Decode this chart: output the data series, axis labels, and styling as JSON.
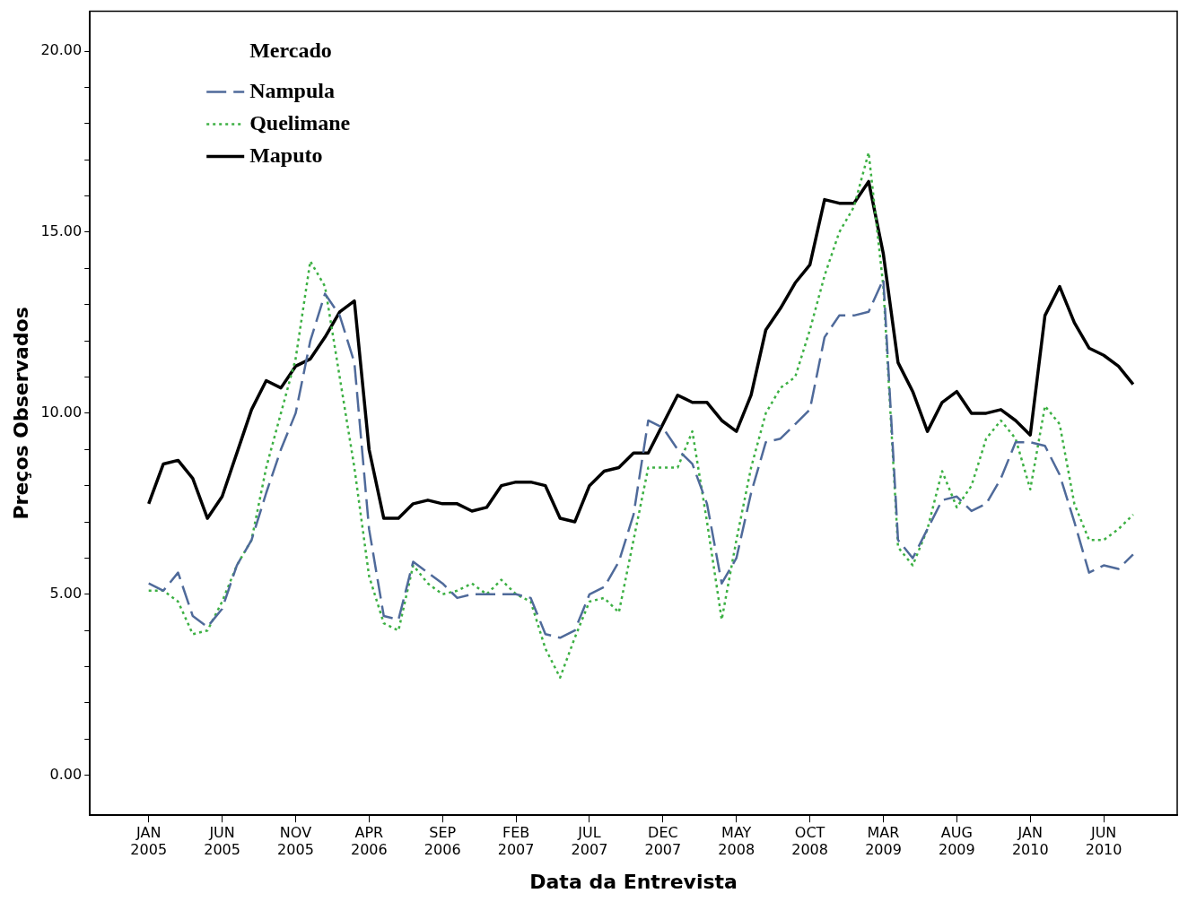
{
  "chart_data": {
    "type": "line",
    "xlabel": "Data da Entrevista",
    "ylabel": "Preços Observados",
    "legend_title": "Mercado",
    "legend": "top left",
    "grid": false,
    "marker": "none",
    "x": [
      "2005-01",
      "2005-02",
      "2005-03",
      "2005-04",
      "2005-05",
      "2005-06",
      "2005-07",
      "2005-08",
      "2005-09",
      "2005-10",
      "2005-11",
      "2005-12",
      "2006-01",
      "2006-02",
      "2006-03",
      "2006-04",
      "2006-05",
      "2006-06",
      "2006-07",
      "2006-08",
      "2006-09",
      "2006-10",
      "2006-11",
      "2006-12",
      "2007-01",
      "2007-02",
      "2007-03",
      "2007-04",
      "2007-05",
      "2007-06",
      "2007-07",
      "2007-08",
      "2007-09",
      "2007-10",
      "2007-11",
      "2007-12",
      "2008-01",
      "2008-02",
      "2008-03",
      "2008-04",
      "2008-05",
      "2008-06",
      "2008-07",
      "2008-08",
      "2008-09",
      "2008-10",
      "2008-11",
      "2008-12",
      "2009-01",
      "2009-02",
      "2009-03",
      "2009-04",
      "2009-05",
      "2009-06",
      "2009-07",
      "2009-08",
      "2009-09",
      "2009-10",
      "2009-11",
      "2009-12",
      "2010-01",
      "2010-02",
      "2010-03",
      "2010-04",
      "2010-05",
      "2010-06",
      "2010-07",
      "2010-08"
    ],
    "xlim": [
      "2004-09",
      "2010-11"
    ],
    "xticks": [
      {
        "value": "2005-01",
        "label": "JAN 2005"
      },
      {
        "value": "2005-06",
        "label": "JUN 2005"
      },
      {
        "value": "2005-11",
        "label": "NOV 2005"
      },
      {
        "value": "2006-04",
        "label": "APR 2006"
      },
      {
        "value": "2006-09",
        "label": "SEP 2006"
      },
      {
        "value": "2007-02",
        "label": "FEB 2007"
      },
      {
        "value": "2007-07",
        "label": "JUL 2007"
      },
      {
        "value": "2007-12",
        "label": "DEC 2007"
      },
      {
        "value": "2008-05",
        "label": "MAY 2008"
      },
      {
        "value": "2008-10",
        "label": "OCT 2008"
      },
      {
        "value": "2009-03",
        "label": "MAR 2009"
      },
      {
        "value": "2009-08",
        "label": "AUG 2009"
      },
      {
        "value": "2010-01",
        "label": "JAN 2010"
      },
      {
        "value": "2010-06",
        "label": "JUN 2010"
      }
    ],
    "ylim": [
      -1.1,
      21.1
    ],
    "yticks": [
      {
        "value": 0,
        "label": "0.00"
      },
      {
        "value": 1,
        "label": null
      },
      {
        "value": 2,
        "label": null
      },
      {
        "value": 3,
        "label": null
      },
      {
        "value": 4,
        "label": null
      },
      {
        "value": 5,
        "label": "5.00"
      },
      {
        "value": 6,
        "label": null
      },
      {
        "value": 7,
        "label": null
      },
      {
        "value": 8,
        "label": null
      },
      {
        "value": 9,
        "label": null
      },
      {
        "value": 10,
        "label": "10.00"
      },
      {
        "value": 11,
        "label": null
      },
      {
        "value": 12,
        "label": null
      },
      {
        "value": 13,
        "label": null
      },
      {
        "value": 14,
        "label": null
      },
      {
        "value": 15,
        "label": "15.00"
      },
      {
        "value": 16,
        "label": null
      },
      {
        "value": 17,
        "label": null
      },
      {
        "value": 18,
        "label": null
      },
      {
        "value": 19,
        "label": null
      },
      {
        "value": 20,
        "label": "20.00"
      }
    ],
    "series": [
      {
        "name": "Nampula",
        "color": "#4f6a9a",
        "line_style": "dashed",
        "values": [
          5.3,
          5.1,
          5.6,
          4.4,
          4.1,
          4.6,
          5.8,
          6.5,
          7.8,
          9.0,
          10.0,
          12.0,
          13.3,
          12.7,
          11.4,
          6.8,
          4.4,
          4.3,
          5.9,
          5.6,
          5.3,
          4.9,
          5.0,
          5.0,
          5.0,
          5.0,
          4.9,
          3.9,
          3.8,
          4.0,
          5.0,
          5.2,
          5.9,
          7.2,
          9.8,
          9.6,
          9.0,
          8.6,
          7.5,
          5.3,
          6.0,
          7.8,
          9.2,
          9.3,
          9.7,
          10.1,
          12.1,
          12.7,
          12.7,
          12.8,
          13.7,
          6.5,
          6.0,
          6.8,
          7.6,
          7.7,
          7.3,
          7.5,
          8.2,
          9.2,
          9.2,
          9.1,
          8.3,
          7.0,
          5.6,
          5.8,
          5.7,
          6.1
        ]
      },
      {
        "name": "Quelimane",
        "color": "#3cb043",
        "line_style": "dotted",
        "values": [
          5.1,
          5.1,
          4.8,
          3.9,
          4.0,
          4.8,
          5.8,
          6.5,
          8.5,
          10.0,
          11.5,
          14.2,
          13.5,
          11.0,
          8.5,
          5.5,
          4.2,
          4.0,
          5.8,
          5.3,
          5.0,
          5.1,
          5.3,
          5.0,
          5.4,
          5.0,
          4.8,
          3.5,
          2.7,
          3.8,
          4.8,
          4.9,
          4.5,
          6.5,
          8.5,
          8.5,
          8.5,
          9.5,
          7.0,
          4.3,
          6.5,
          8.5,
          10.0,
          10.7,
          11.0,
          12.3,
          13.8,
          15.0,
          15.7,
          17.2,
          13.5,
          6.3,
          5.8,
          6.8,
          8.4,
          7.4,
          8.0,
          9.3,
          9.8,
          9.3,
          7.9,
          10.2,
          9.7,
          7.5,
          6.5,
          6.5,
          6.8,
          7.2
        ]
      },
      {
        "name": "Maputo",
        "color": "#000000",
        "line_style": "solid",
        "values": [
          7.5,
          8.6,
          8.7,
          8.2,
          7.1,
          7.7,
          8.9,
          10.1,
          10.9,
          10.7,
          11.3,
          11.5,
          12.1,
          12.8,
          13.1,
          9.0,
          7.1,
          7.1,
          7.5,
          7.6,
          7.5,
          7.5,
          7.3,
          7.4,
          8.0,
          8.1,
          8.1,
          8.0,
          7.1,
          7.0,
          8.0,
          8.4,
          8.5,
          8.9,
          8.9,
          9.7,
          10.5,
          10.3,
          10.3,
          9.8,
          9.5,
          10.5,
          12.3,
          12.9,
          13.6,
          14.1,
          15.9,
          15.8,
          15.8,
          16.4,
          14.4,
          11.4,
          10.6,
          9.5,
          10.3,
          10.6,
          10.0,
          10.0,
          10.1,
          9.8,
          9.4,
          12.7,
          13.5,
          12.5,
          11.8,
          11.6,
          11.3,
          10.8
        ]
      }
    ]
  }
}
